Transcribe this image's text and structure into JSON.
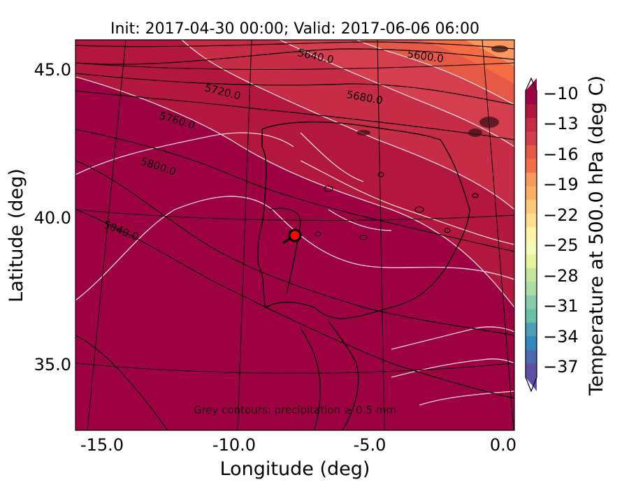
{
  "title": "Init: 2017-04-30 00:00; Valid: 2017-06-06 06:00",
  "xlabel": "Longitude (deg)",
  "ylabel": "Latitude (deg)",
  "x_ticks": [
    "-15.0",
    "-10.0",
    "-5.0",
    "0.0"
  ],
  "y_ticks": [
    "45.0",
    "40.0",
    "35.0"
  ],
  "colorbar": {
    "label": "Temperature at 500.0 hPa (deg C)",
    "ticks": [
      "−10",
      "−13",
      "−16",
      "−19",
      "−22",
      "−25",
      "−28",
      "−31",
      "−34",
      "−37"
    ],
    "colors": [
      "#9e0142",
      "#b3173f",
      "#c72c46",
      "#d53e4f",
      "#e65a45",
      "#f46d43",
      "#f99a5a",
      "#fdae61",
      "#fdcb77",
      "#fee08b",
      "#fff3a6",
      "#f5fbb0",
      "#e6f598",
      "#c4e69e",
      "#abdda4",
      "#84ccab",
      "#66c2a5",
      "#4e9fb5",
      "#3288bd",
      "#4a6bb0",
      "#5e4fa2"
    ]
  },
  "height_labels": [
    "5600.0",
    "5640.0",
    "5680.0",
    "5720.0",
    "5760.0",
    "5800.0",
    "5840.0"
  ],
  "footnote": "Grey contours: precipitation ≥ 0.5 mm",
  "marker": {
    "lon": -7.7,
    "lat": 39.4
  },
  "chart_data": {
    "type": "heatmap",
    "title": "Init: 2017-04-30 00:00; Valid: 2017-06-06 06:00",
    "xlabel": "Longitude (deg)",
    "ylabel": "Latitude (deg)",
    "xlim": [
      -16.0,
      0.2
    ],
    "ylim": [
      32.8,
      46.0
    ],
    "field": "Temperature at 500.0 hPa (deg C)",
    "color_scale_ticks": [
      -10,
      -13,
      -16,
      -19,
      -22,
      -25,
      -28,
      -31,
      -34,
      -37
    ],
    "geopotential_height_contours": [
      5600.0,
      5640.0,
      5680.0,
      5720.0,
      5760.0,
      5800.0,
      5840.0
    ],
    "marker_location": {
      "lon": -7.7,
      "lat": 39.4
    }
  }
}
